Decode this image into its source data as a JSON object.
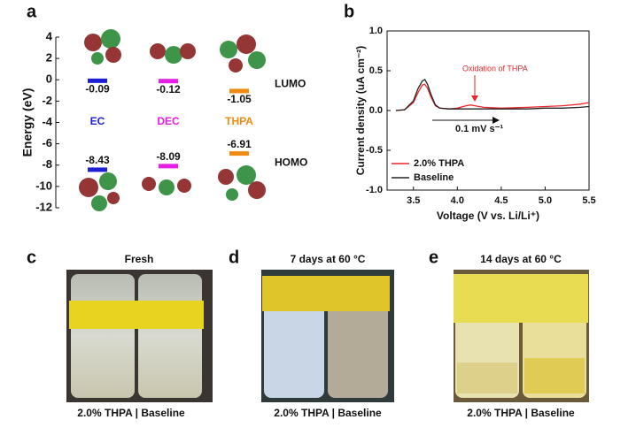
{
  "panel_labels": [
    "a",
    "b",
    "c",
    "d",
    "e"
  ],
  "chart_data": [
    {
      "type": "level",
      "ylabel": "Energy (eV)",
      "categories": [
        "EC",
        "DEC",
        "THPA"
      ],
      "colors": [
        "#1f1fd6",
        "#e51fe5",
        "#f08a10"
      ],
      "series": [
        {
          "name": "LUMO",
          "values": [
            -0.09,
            -0.12,
            -1.05
          ]
        },
        {
          "name": "HOMO",
          "values": [
            -8.43,
            -8.09,
            -6.91
          ]
        }
      ],
      "ylim": [
        -12,
        4
      ],
      "yticks": [
        4,
        2,
        0,
        -2,
        -4,
        -6,
        -8,
        -10,
        -12
      ]
    },
    {
      "type": "line",
      "xlabel": "Voltage (V vs. Li/Li⁺)",
      "ylabel": "Current density (uA cm⁻²)",
      "annotations": [
        "Oxidation of THPA",
        "0.1 mV s⁻¹"
      ],
      "x": [
        3.3,
        3.4,
        3.5,
        3.55,
        3.6,
        3.63,
        3.66,
        3.7,
        3.75,
        3.8,
        3.9,
        4.0,
        4.1,
        4.15,
        4.2,
        4.3,
        4.5,
        4.8,
        5.0,
        5.2,
        5.4,
        5.5
      ],
      "series": [
        {
          "name": "2.0% THPA",
          "color": "#e8262b",
          "values": [
            0.0,
            0.01,
            0.1,
            0.22,
            0.32,
            0.33,
            0.28,
            0.17,
            0.06,
            0.03,
            0.02,
            0.03,
            0.06,
            0.07,
            0.06,
            0.04,
            0.03,
            0.04,
            0.05,
            0.06,
            0.08,
            0.1
          ]
        },
        {
          "name": "Baseline",
          "color": "#222222",
          "values": [
            0.0,
            0.01,
            0.12,
            0.27,
            0.37,
            0.39,
            0.33,
            0.2,
            0.07,
            0.03,
            0.02,
            0.02,
            0.02,
            0.02,
            0.02,
            0.02,
            0.02,
            0.02,
            0.03,
            0.03,
            0.04,
            0.05
          ]
        }
      ],
      "xlim": [
        3.2,
        5.5
      ],
      "ylim": [
        -1.0,
        1.0
      ],
      "xticks": [
        3.5,
        {
          "value": 4.0,
          "label": "4.0"
        },
        4.5,
        {
          "value": 5.0,
          "label": "5.0"
        },
        5.5
      ],
      "yticks": [
        {
          "value": -1.0,
          "label": "-1.0"
        },
        -0.5,
        {
          "value": 0.0,
          "label": "0.0"
        },
        0.5,
        {
          "value": 1.0,
          "label": "1.0"
        }
      ],
      "legend": "lower-left"
    }
  ],
  "photos": [
    {
      "title": "Fresh",
      "caption": "2.0% THPA | Baseline"
    },
    {
      "title": "7 days at 60 °C",
      "caption": "2.0% THPA | Baseline"
    },
    {
      "title": "14 days at 60 °C",
      "caption": "2.0% THPA | Baseline"
    }
  ]
}
